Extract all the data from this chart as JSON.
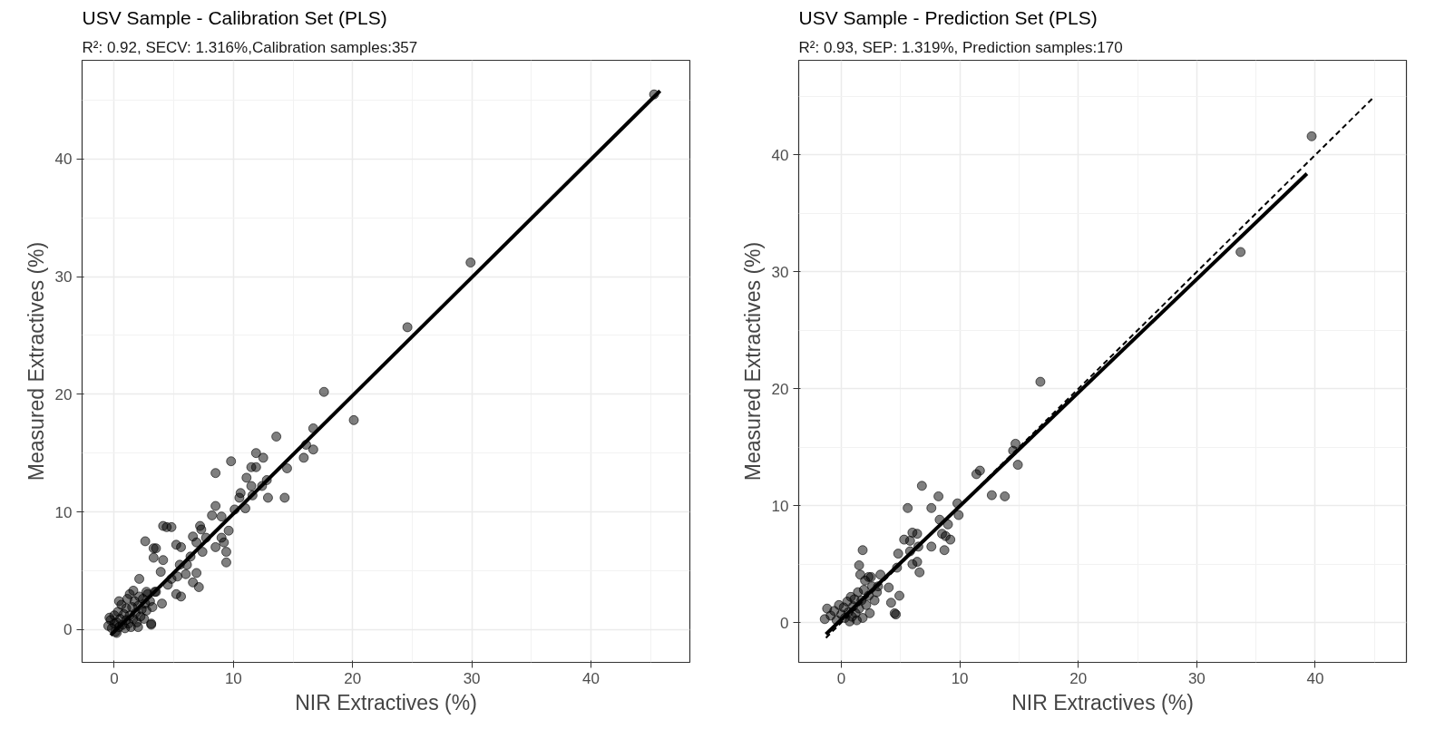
{
  "chart_data": [
    {
      "type": "scatter",
      "title": "USV Sample - Calibration Set (PLS)",
      "subtitle": "R²: 0.92, SECV: 1.316%,Calibration samples:357",
      "xlabel": "NIR Extractives (%)",
      "ylabel": "Measured Extractives (%)",
      "xlim": [
        -2.7,
        48.3
      ],
      "ylim": [
        -2.8,
        48.4
      ],
      "xticks": [
        0,
        10,
        20,
        30,
        40
      ],
      "yticks": [
        0,
        10,
        20,
        30,
        40
      ],
      "grid": true,
      "series": [
        {
          "marker": "circle",
          "color": "#000000",
          "x": [
            45.3,
            29.9,
            24.6,
            17.6,
            20.1,
            16.7,
            16.7,
            16.1,
            15.9,
            13.6,
            14.5,
            14.3,
            11.9,
            12.5,
            11.5,
            11.9,
            9.8,
            8.5,
            11.1,
            12.8,
            12.4,
            11.5,
            10.6,
            10.5,
            11.6,
            12.9,
            11.0,
            10.1,
            8.5,
            9.6,
            9.4,
            9.4,
            9.2,
            9.0,
            8.2,
            9.0,
            7.2,
            7.3,
            6.6,
            6.9,
            7.7,
            8.5,
            7.4,
            6.4,
            6.9,
            7.1,
            6.6,
            6.0,
            5.6,
            5.2,
            4.8,
            4.1,
            4.4,
            2.6,
            3.3,
            3.5,
            3.3,
            4.1,
            3.9,
            2.1,
            5.2,
            5.6,
            5.3,
            4.8,
            5.5,
            6.1,
            4.5,
            4.0,
            3.1,
            3.5,
            2.7,
            -0.5,
            -0.3,
            -0.2,
            0,
            0,
            0.1,
            0.2,
            0.3,
            0.4,
            0.5,
            0.6,
            0.7,
            0.8,
            0.9,
            1.0,
            1.0,
            1.1,
            1.2,
            1.3,
            1.4,
            1.5,
            1.6,
            1.7,
            1.8,
            1.9,
            2.0,
            2.1,
            2.2,
            2.3,
            2.4,
            2.5,
            2.6,
            2.7,
            2.8,
            3.0,
            3.2,
            3.4,
            0.4,
            -0.4,
            0.2,
            1.3,
            2.0,
            3.1,
            1.6
          ],
          "values": [
            45.5,
            31.2,
            25.7,
            20.2,
            17.8,
            17.1,
            15.3,
            15.7,
            14.6,
            16.4,
            13.7,
            11.2,
            15.0,
            14.6,
            13.8,
            13.8,
            14.3,
            13.3,
            12.9,
            12.7,
            12.2,
            12.2,
            11.6,
            11.2,
            11.4,
            11.2,
            10.3,
            10.2,
            10.5,
            8.4,
            6.6,
            5.7,
            7.4,
            7.8,
            9.7,
            9.6,
            8.8,
            8.5,
            7.9,
            7.4,
            7.8,
            7.0,
            6.6,
            6.2,
            4.8,
            3.6,
            4.0,
            4.7,
            7.0,
            7.2,
            8.7,
            8.8,
            8.7,
            7.5,
            6.9,
            6.9,
            6.1,
            5.9,
            4.9,
            4.3,
            3.0,
            2.8,
            4.5,
            4.3,
            5.5,
            5.5,
            3.8,
            2.2,
            0.5,
            3.2,
            3.2,
            0.3,
            0.8,
            0.1,
            0.5,
            1.2,
            -0.2,
            0.6,
            1.5,
            0.2,
            0.9,
            2.1,
            0.4,
            1.3,
            0.1,
            0.8,
            1.8,
            2.6,
            0.5,
            1.2,
            0.2,
            1.9,
            0.9,
            2.4,
            1.4,
            0.6,
            2.0,
            2.8,
            1.1,
            1.7,
            2.6,
            0.9,
            2.2,
            1.6,
            3.0,
            2.4,
            1.9,
            3.2,
            2.4,
            1.0,
            -0.3,
            3.0,
            0.2,
            0.4,
            3.3
          ]
        },
        {
          "type": "line",
          "marker": "none",
          "color": "#000000",
          "x": [
            -0.3,
            45.8
          ],
          "values": [
            -0.5,
            45.8
          ]
        }
      ]
    },
    {
      "type": "scatter",
      "title": "USV Sample - Prediction Set (PLS)",
      "subtitle": "R²: 0.93, SEP: 1.319%, Prediction samples:170",
      "xlabel": "NIR Extractives (%)",
      "ylabel": "Measured Extractives (%)",
      "xlim": [
        -3.6,
        47.7
      ],
      "ylim": [
        -3.4,
        48.1
      ],
      "xticks": [
        0,
        10,
        20,
        30,
        40
      ],
      "yticks": [
        0,
        10,
        20,
        30,
        40
      ],
      "grid": true,
      "series": [
        {
          "marker": "circle",
          "color": "#000000",
          "x": [
            39.7,
            33.7,
            16.8,
            14.7,
            14.5,
            14.9,
            11.7,
            11.4,
            12.7,
            13.8,
            9.8,
            9.9,
            6.8,
            8.2,
            7.6,
            5.6,
            8.3,
            9.0,
            8.5,
            8.8,
            9.2,
            8.7,
            7.6,
            6.0,
            6.4,
            5.3,
            5.8,
            4.8,
            5.8,
            6.5,
            6.0,
            6.4,
            6.6,
            4.7,
            1.8,
            1.5,
            1.6,
            2.3,
            3.3,
            4.9,
            4.2,
            4.5,
            4.6,
            4.0,
            3.1,
            -1.4,
            -1.2,
            -0.9,
            -0.6,
            -0.4,
            -0.2,
            0,
            0.2,
            0.3,
            0.5,
            0.6,
            0.8,
            0.9,
            1.0,
            1.1,
            1.2,
            1.4,
            1.5,
            1.7,
            1.8,
            1.9,
            2.1,
            2.3,
            2.4,
            2.6,
            2.8,
            3.0,
            0.7,
            2.0,
            2.5,
            1.3
          ],
          "values": [
            41.6,
            31.7,
            20.6,
            15.3,
            14.7,
            13.5,
            13.0,
            12.7,
            10.9,
            10.8,
            10.2,
            9.2,
            11.7,
            10.8,
            9.8,
            9.8,
            8.8,
            8.4,
            7.6,
            7.4,
            7.1,
            6.2,
            6.5,
            7.7,
            7.6,
            7.1,
            7.0,
            5.9,
            6.1,
            6.5,
            5.0,
            5.2,
            4.3,
            4.7,
            6.2,
            4.9,
            4.1,
            3.9,
            4.1,
            2.3,
            1.7,
            0.8,
            0.7,
            3.0,
            3.1,
            0.3,
            1.2,
            0.6,
            1.0,
            0.2,
            1.5,
            0.7,
            1.3,
            0.4,
            1.8,
            0.9,
            2.2,
            0.5,
            1.4,
            2.0,
            0.8,
            2.6,
            1.2,
            1.9,
            0.4,
            2.8,
            1.5,
            2.3,
            0.8,
            3.1,
            1.9,
            2.6,
            0.1,
            3.6,
            3.9,
            0.2
          ]
        },
        {
          "type": "line",
          "marker": "none",
          "color": "#000000",
          "x": [
            -1.3,
            39.3
          ],
          "values": [
            -1.0,
            38.4
          ]
        },
        {
          "type": "line",
          "marker": "none",
          "color": "#000000",
          "line_style": "dashed",
          "x": [
            -1.3,
            45.0
          ],
          "values": [
            -1.3,
            45.0
          ]
        }
      ]
    }
  ]
}
